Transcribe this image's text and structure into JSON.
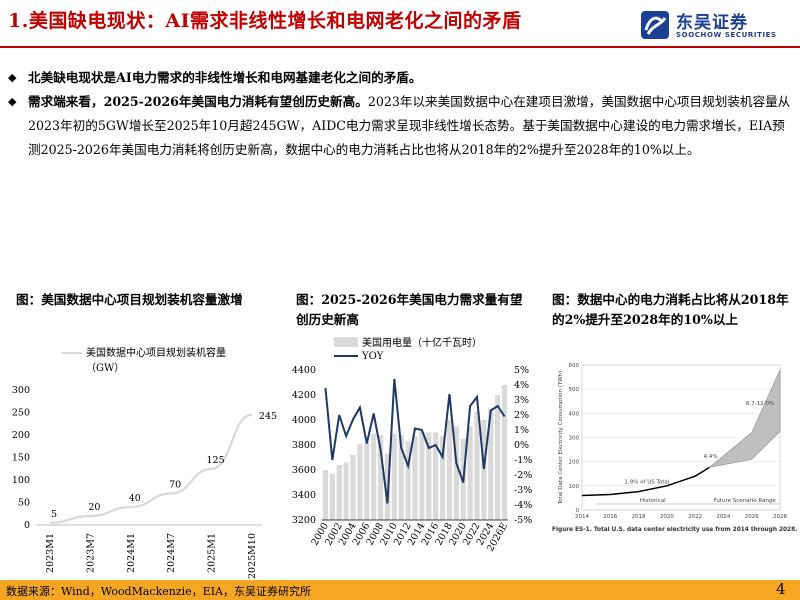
{
  "header": {
    "title": "1.美国缺电现状：AI需求非线性增长和电网老化之间的矛盾",
    "logo_cn": "东吴证券",
    "logo_en": "SOOCHOW SECURITIES"
  },
  "bullets": [
    {
      "bold": "北美缺电现状是AI电力需求的非线性增长和电网基建老化之间的矛盾。",
      "text": ""
    },
    {
      "bold": "需求端来看，2025-2026年美国电力消耗有望创历史新高。",
      "text": "2023年以来美国数据中心在建项目激增，美国数据中心项目规划装机容量从2023年初的5GW增长至2025年10月超245GW，AIDC电力需求呈现非线性增长态势。基于美国数据中心建设的电力需求増长，EIA预测2025-2026年美国电力消耗将创历史新高，数据中心的电力消耗占比也将从2018年的2%提升至2028年的10%以上。"
    }
  ],
  "figures": {
    "fig1_title": "图：美国数据中心项目规划装机容量激增",
    "fig2_title": "图：2025-2026年美国电力需求量有望创历史新高",
    "fig3_title": "图：数据中心的电力消耗占比将从2018年的2%提升至2028年的10%以上"
  },
  "chart_data": [
    {
      "type": "line",
      "legend": [
        "美国数据中心项目规划装机容量",
        "（GW）"
      ],
      "categories": [
        "2023M1",
        "2023M7",
        "2024M1",
        "2024M7",
        "2025M1",
        "2025M10"
      ],
      "x_index": [
        0,
        1,
        2,
        3,
        4,
        5
      ],
      "values": [
        5,
        20,
        40,
        70,
        125,
        245
      ],
      "data_labels": [
        "5",
        "20",
        "40",
        "70",
        "125",
        "245"
      ],
      "ylim": [
        0,
        300
      ],
      "yticks": [
        0,
        50,
        100,
        150,
        200,
        250,
        300
      ],
      "color": "#d9d9d9"
    },
    {
      "type": "bar+line",
      "bar_series": "美国用电量（十亿千瓦时）",
      "line_series": "YOY",
      "x": [
        "2000",
        "2001",
        "2002",
        "2003",
        "2004",
        "2005",
        "2006",
        "2007",
        "2008",
        "2009",
        "2010",
        "2011",
        "2012",
        "2013",
        "2014",
        "2015",
        "2016",
        "2017",
        "2018",
        "2019",
        "2020",
        "2021",
        "2022",
        "2023",
        "2024",
        "2025E",
        "2026E"
      ],
      "x_tick_labels": [
        "2000",
        "2002",
        "2004",
        "2006",
        "2008",
        "2010",
        "2012",
        "2014",
        "2016",
        "2018",
        "2020",
        "2022",
        "2024",
        "2026E"
      ],
      "bars": [
        3600,
        3570,
        3640,
        3660,
        3720,
        3810,
        3820,
        3890,
        3880,
        3730,
        3890,
        3880,
        3830,
        3870,
        3910,
        3900,
        3900,
        3870,
        4000,
        3950,
        3850,
        3950,
        4070,
        4000,
        4090,
        4200,
        4280
      ],
      "yoy_percent": [
        3.8,
        -1.0,
        2.0,
        0.6,
        1.7,
        2.5,
        0.1,
        2.1,
        -0.3,
        -3.9,
        4.4,
        -0.2,
        -1.4,
        1.1,
        1.0,
        -0.2,
        0.0,
        -0.8,
        3.4,
        -1.2,
        -2.5,
        2.6,
        3.2,
        -1.6,
        2.3,
        2.6,
        1.9
      ],
      "y_left_lim": [
        3200,
        4400
      ],
      "y_left_ticks": [
        3200,
        3400,
        3600,
        3800,
        4000,
        4200,
        4400
      ],
      "y_right_lim": [
        -5,
        5
      ],
      "y_right_ticks": [
        "-5%",
        "-4%",
        "-3%",
        "-2%",
        "-1%",
        "0%",
        "1%",
        "2%",
        "3%",
        "4%",
        "5%"
      ],
      "colors": {
        "bars": "#d9d9d9",
        "line": "#1f3864"
      }
    },
    {
      "type": "line",
      "series_note": "Total U.S. data center electricity use from 2014 through 2028",
      "ylabel": "Total Data Center Electricity Consumption (TWh)",
      "x": [
        2014,
        2016,
        2018,
        2020,
        2022,
        2024,
        2026,
        2028
      ],
      "historical_x": [
        2014,
        2016,
        2018,
        2020,
        2022,
        2023
      ],
      "historical_y": [
        60,
        64,
        76,
        100,
        140,
        176
      ],
      "scenario_low": [
        176,
        210,
        325
      ],
      "scenario_high": [
        176,
        320,
        580
      ],
      "scenario_x": [
        2023,
        2026,
        2028
      ],
      "ylim": [
        0,
        600
      ],
      "yticks": [
        0,
        100,
        200,
        300,
        400,
        500,
        600
      ],
      "annotations": [
        "1.9% of US Total",
        "4.4%",
        "6.7-12.0%"
      ],
      "labels": [
        "Historical",
        "Future Scenario Range"
      ],
      "caption": "Figure ES-1. Total U.S. data center electricity use from 2014 through 2028."
    }
  ],
  "footer": {
    "source": "数据来源：Wind，WoodMackenzie，EIA，东吴证券研究所",
    "page": "4"
  }
}
